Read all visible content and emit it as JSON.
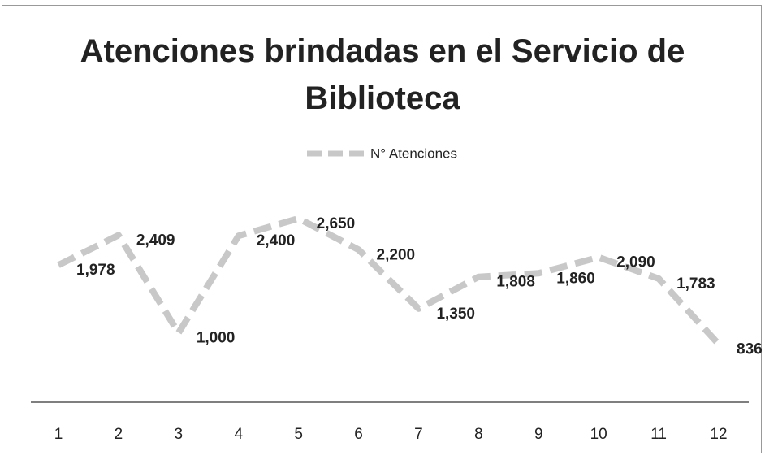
{
  "chart_data": {
    "type": "line",
    "title": "Atenciones brindadas en el Servicio de Biblioteca",
    "categories": [
      "1",
      "2",
      "3",
      "4",
      "5",
      "6",
      "7",
      "8",
      "9",
      "10",
      "11",
      "12"
    ],
    "series": [
      {
        "name": "N° Atenciones",
        "color": "#c8c8c8",
        "values": [
          1978,
          2409,
          1000,
          2400,
          2650,
          2200,
          1350,
          1808,
          1860,
          2090,
          1783,
          836
        ],
        "value_labels": [
          "1,978",
          "2,409",
          "1,000",
          "2,400",
          "2,650",
          "2,200",
          "1,350",
          "1,808",
          "1,860",
          "2,090",
          "1,783",
          "836"
        ]
      }
    ],
    "ylim": [
      0,
      3000
    ],
    "legend": "top"
  }
}
